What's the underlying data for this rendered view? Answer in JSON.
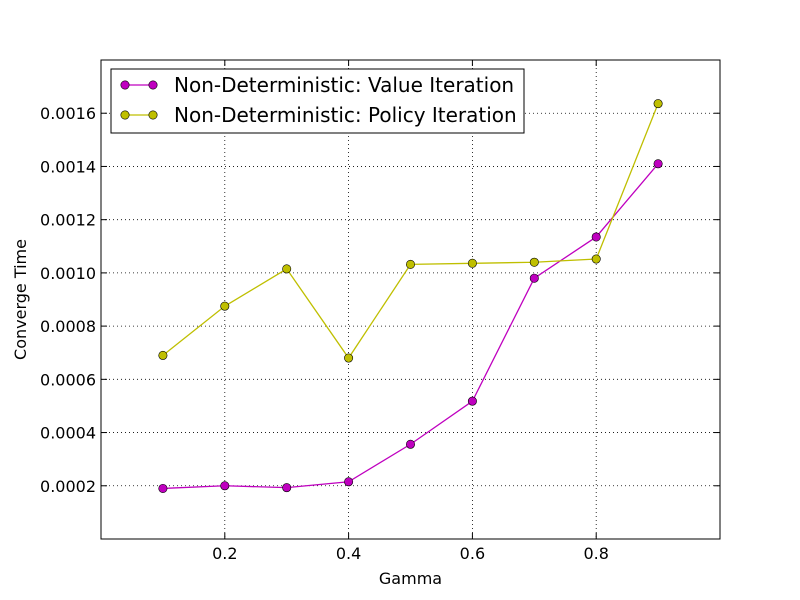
{
  "chart_data": {
    "type": "line",
    "title": "",
    "xlabel": "Gamma",
    "ylabel": "Converge Time",
    "xlim": [
      0.0,
      1.0
    ],
    "ylim": [
      0.0,
      0.0018
    ],
    "x_ticks": [
      "0.2",
      "0.4",
      "0.6",
      "0.8"
    ],
    "y_ticks": [
      "0.0002",
      "0.0004",
      "0.0006",
      "0.0008",
      "0.0010",
      "0.0012",
      "0.0014",
      "0.0016"
    ],
    "x": [
      0.1,
      0.2,
      0.3,
      0.4,
      0.5,
      0.6,
      0.7,
      0.8,
      0.9
    ],
    "series": [
      {
        "name": "Non-Deterministic: Value Iteration",
        "color": "#bf00bf",
        "values": [
          0.00019,
          0.0002,
          0.000193,
          0.000215,
          0.000356,
          0.000518,
          0.00098,
          0.001135,
          0.00141
        ]
      },
      {
        "name": "Non-Deterministic: Policy Iteration",
        "color": "#bfbf00",
        "values": [
          0.00069,
          0.000875,
          0.001015,
          0.00068,
          0.001032,
          0.001036,
          0.00104,
          0.001052,
          0.001636
        ]
      }
    ],
    "grid": true,
    "legend_position": "top-left"
  }
}
